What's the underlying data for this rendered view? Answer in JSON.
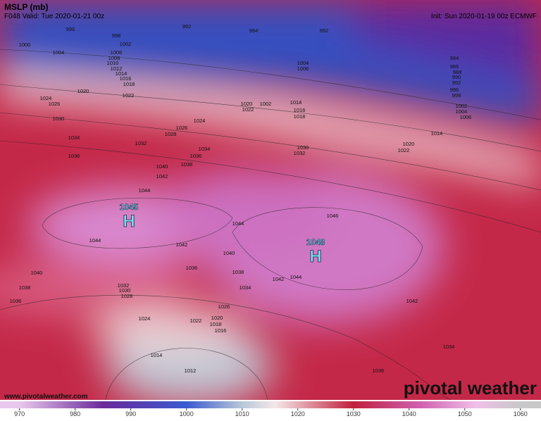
{
  "header": {
    "title": "MSLP (mb)",
    "valid": "F048 Valid: Tue 2020-01-21 00z",
    "init": "Init: Sun 2020-01-19 00z ECMWF"
  },
  "highs": [
    {
      "symbol": "H",
      "value": 1045
    },
    {
      "symbol": "H",
      "value": 1048
    }
  ],
  "isobar_labels": [
    996,
    992,
    994,
    992,
    1000,
    1004,
    998,
    1002,
    1006,
    1008,
    1010,
    1012,
    1014,
    1016,
    1018,
    1020,
    1022,
    1024,
    1026,
    1030,
    1034,
    1036,
    1028,
    1026,
    1024,
    1032,
    1034,
    1036,
    1038,
    1040,
    1042,
    1044,
    1044,
    1042,
    1040,
    1038,
    1036,
    1034,
    1040,
    1038,
    1036,
    1032,
    1030,
    1028,
    1026,
    1024,
    1022,
    1020,
    1018,
    1016,
    1014,
    1012,
    1044,
    1046,
    1042,
    1044,
    1042,
    1034,
    1036,
    1004,
    1006,
    1002,
    1022,
    1020,
    1014,
    1016,
    1018,
    1030,
    1032,
    1014,
    1020,
    1022,
    984,
    986,
    988,
    990,
    992,
    996,
    998,
    1002,
    1004,
    1006
  ],
  "footer": {
    "url": "www.pivotalweather.com",
    "brand": "pivotal weather"
  },
  "colorbar": {
    "lim": [
      966.5,
      1063.7
    ],
    "ticks": [
      970,
      980,
      990,
      1000,
      1010,
      1020,
      1030,
      1040,
      1050,
      1060
    ],
    "stops": [
      {
        "value": 970,
        "color": "#e8c8ec"
      },
      {
        "value": 985,
        "color": "#6a2a9a"
      },
      {
        "value": 1000,
        "color": "#3a5ad0"
      },
      {
        "value": 1010,
        "color": "#b8c8d8"
      },
      {
        "value": 1016,
        "color": "#f4e8e8"
      },
      {
        "value": 1030,
        "color": "#c0203c"
      },
      {
        "value": 1042,
        "color": "#d060b0"
      },
      {
        "value": 1052,
        "color": "#f0c0e8"
      },
      {
        "value": 1060,
        "color": "#c8c8c8"
      }
    ]
  }
}
